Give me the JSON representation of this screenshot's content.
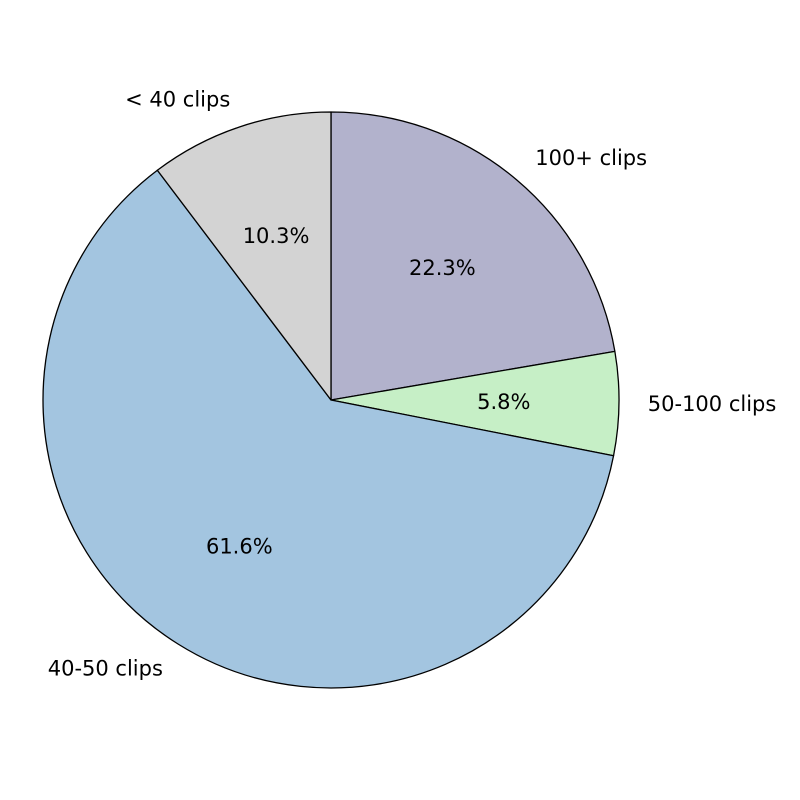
{
  "chart_data": {
    "type": "pie",
    "title": "",
    "slices": [
      {
        "label": "100+ clips",
        "value": 22.3,
        "pct_label": "22.3%",
        "color": "#b2b2cc"
      },
      {
        "label": "50-100 clips",
        "value": 5.8,
        "pct_label": "5.8%",
        "color": "#c6efc6"
      },
      {
        "label": "40-50 clips",
        "value": 61.6,
        "pct_label": "61.6%",
        "color": "#a3c5e0"
      },
      {
        "label": "< 40 clips",
        "value": 10.3,
        "pct_label": "10.3%",
        "color": "#d3d3d3"
      }
    ],
    "start": "top",
    "direction": "clockwise",
    "edge_color": "#000000",
    "legend": "none"
  }
}
